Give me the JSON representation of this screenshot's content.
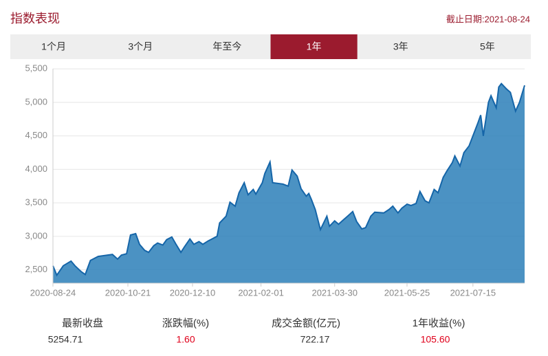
{
  "header": {
    "title": "指数表现",
    "date": "截止日期:2021-08-24"
  },
  "tabs": {
    "items": [
      "1个月",
      "3个月",
      "年至今",
      "1年",
      "3年",
      "5年"
    ],
    "active": 3
  },
  "chart_data": {
    "type": "area",
    "color": "#2c7fb8",
    "x": [
      "2020-08-24",
      "2020-08-27",
      "2020-09-01",
      "2020-09-07",
      "2020-09-10",
      "2020-09-15",
      "2020-09-18",
      "2020-09-22",
      "2020-09-28",
      "2020-10-09",
      "2020-10-13",
      "2020-10-16",
      "2020-10-20",
      "2020-10-23",
      "2020-10-27",
      "2020-10-30",
      "2020-11-03",
      "2020-11-06",
      "2020-11-10",
      "2020-11-13",
      "2020-11-17",
      "2020-11-20",
      "2020-11-24",
      "2020-11-27",
      "2020-12-01",
      "2020-12-04",
      "2020-12-08",
      "2020-12-11",
      "2020-12-15",
      "2020-12-18",
      "2020-12-22",
      "2020-12-25",
      "2020-12-29",
      "2020-12-31",
      "2021-01-05",
      "2021-01-08",
      "2021-01-12",
      "2021-01-15",
      "2021-01-19",
      "2021-01-22",
      "2021-01-26",
      "2021-01-28",
      "2021-02-02",
      "2021-02-04",
      "2021-02-08",
      "2021-02-10",
      "2021-02-18",
      "2021-02-22",
      "2021-02-25",
      "2021-03-01",
      "2021-03-04",
      "2021-03-08",
      "2021-03-10",
      "2021-03-12",
      "2021-03-15",
      "2021-03-19",
      "2021-03-24",
      "2021-03-26",
      "2021-03-30",
      "2021-04-02",
      "2021-04-06",
      "2021-04-09",
      "2021-04-13",
      "2021-04-16",
      "2021-04-20",
      "2021-04-23",
      "2021-04-27",
      "2021-04-30",
      "2021-05-07",
      "2021-05-11",
      "2021-05-14",
      "2021-05-18",
      "2021-05-21",
      "2021-05-25",
      "2021-05-28",
      "2021-06-01",
      "2021-06-04",
      "2021-06-08",
      "2021-06-11",
      "2021-06-15",
      "2021-06-18",
      "2021-06-22",
      "2021-06-25",
      "2021-06-29",
      "2021-07-01",
      "2021-07-05",
      "2021-07-08",
      "2021-07-12",
      "2021-07-15",
      "2021-07-19",
      "2021-07-21",
      "2021-07-23",
      "2021-07-27",
      "2021-07-29",
      "2021-08-02",
      "2021-08-04",
      "2021-08-06",
      "2021-08-10",
      "2021-08-13",
      "2021-08-17",
      "2021-08-20",
      "2021-08-24"
    ],
    "values": [
      2560,
      2420,
      2560,
      2630,
      2560,
      2470,
      2430,
      2640,
      2700,
      2730,
      2660,
      2720,
      2740,
      3020,
      3040,
      2880,
      2790,
      2760,
      2860,
      2900,
      2870,
      2950,
      2990,
      2890,
      2760,
      2850,
      2960,
      2880,
      2920,
      2880,
      2930,
      2960,
      3000,
      3200,
      3300,
      3510,
      3450,
      3650,
      3800,
      3620,
      3700,
      3630,
      3800,
      3940,
      4110,
      3800,
      3780,
      3750,
      3990,
      3900,
      3710,
      3600,
      3640,
      3550,
      3400,
      3100,
      3300,
      3150,
      3230,
      3180,
      3250,
      3300,
      3370,
      3220,
      3110,
      3130,
      3300,
      3360,
      3350,
      3400,
      3450,
      3350,
      3420,
      3480,
      3460,
      3490,
      3670,
      3530,
      3500,
      3700,
      3650,
      3880,
      3980,
      4100,
      4200,
      4050,
      4250,
      4350,
      4500,
      4700,
      4810,
      4500,
      5000,
      5100,
      4920,
      5230,
      5280,
      5200,
      5150,
      4870,
      5000,
      5254.71
    ],
    "ylim": [
      2400,
      5500
    ],
    "yticks": [
      {
        "value": 2500,
        "label": "2,500"
      },
      {
        "value": 3000,
        "label": "3,000"
      },
      {
        "value": 3500,
        "label": "3,500"
      },
      {
        "value": 4000,
        "label": "4,000"
      },
      {
        "value": 4500,
        "label": "4,500"
      },
      {
        "value": 5000,
        "label": "5,000"
      },
      {
        "value": 5500,
        "label": "5,500"
      }
    ],
    "xticks": [
      "2020-08-24",
      "2020-10-21",
      "2020-12-10",
      "2021-02-01",
      "2021-03-30",
      "2021-05-25",
      "2021-07-15"
    ],
    "xlim": [
      "2020-08-24",
      "2021-08-24"
    ],
    "grid": true
  },
  "stats": [
    {
      "label": "最新收盘",
      "value": "5254.71"
    },
    {
      "label": "涨跌幅(%)",
      "value": "1.60"
    },
    {
      "label": "成交金额(亿元)",
      "value": "722.17"
    },
    {
      "label": "1年收益(%)",
      "value": "105.60"
    }
  ]
}
